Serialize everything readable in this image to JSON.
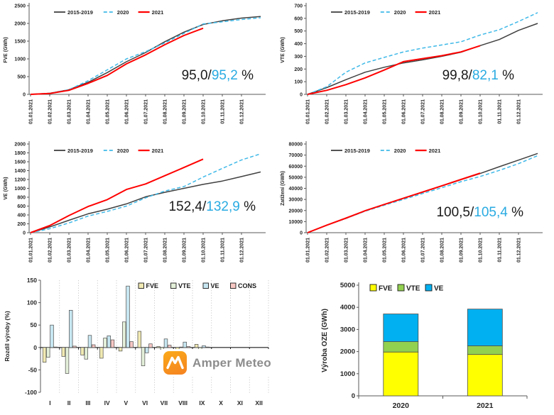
{
  "colors": {
    "axis": "#595959",
    "axis_text": "#262626",
    "hist": "#404040",
    "blue_dash": "#3FB9E8",
    "red": "#FF0000",
    "accent_text": "#29ABE2",
    "bar_border": "#4d4d4d",
    "grid": "#BFBFBF"
  },
  "logo": {
    "text": "Amper Meteo"
  },
  "x_dates": [
    "01.01.2021",
    "01.02.2021",
    "01.03.2021",
    "01.04.2021",
    "01.05.2021",
    "01.06.2021",
    "01.07.2021",
    "01.08.2021",
    "01.09.2021",
    "01.10.2021",
    "01.11.2021",
    "01.12.2021"
  ],
  "chart_data": [
    {
      "id": "fve",
      "type": "line",
      "title": "",
      "ylabel": "FVE  (GWh)",
      "ylim": [
        0,
        2500
      ],
      "ytick": 500,
      "legend_position": "top-left-inside",
      "grid": false,
      "annotation": {
        "left": "95,0/",
        "accent": "95,2",
        "right": " %",
        "x": 357,
        "y": 112
      },
      "series": [
        {
          "name": "2015-2019",
          "style": "hist",
          "values": [
            0,
            30,
            130,
            340,
            615,
            920,
            1180,
            1485,
            1755,
            1970,
            2075,
            2150,
            2195
          ]
        },
        {
          "name": "2020",
          "style": "dash",
          "values": [
            0,
            30,
            130,
            385,
            690,
            1000,
            1205,
            1450,
            1720,
            1985,
            2045,
            2110,
            2160
          ]
        },
        {
          "name": "2021",
          "style": "red",
          "values": [
            0,
            25,
            115,
            310,
            535,
            860,
            1115,
            1400,
            1660,
            1865
          ]
        }
      ]
    },
    {
      "id": "vte",
      "type": "line",
      "title": "",
      "ylabel": "VTE  (GWh)",
      "ylim": [
        0,
        700
      ],
      "ytick": 100,
      "legend_position": "top-left-inside",
      "grid": false,
      "annotation": {
        "left": "99,8/",
        "accent": "82,1",
        "right": " %",
        "x": 334,
        "y": 112
      },
      "series": [
        {
          "name": "2015-2019",
          "style": "hist",
          "values": [
            0,
            53,
            116,
            175,
            214,
            248,
            272,
            300,
            332,
            385,
            433,
            505,
            560
          ]
        },
        {
          "name": "2020",
          "style": "dash",
          "values": [
            0,
            60,
            175,
            248,
            292,
            335,
            365,
            390,
            415,
            468,
            510,
            575,
            645
          ]
        },
        {
          "name": "2021",
          "style": "red",
          "values": [
            0,
            32,
            77,
            130,
            192,
            258,
            282,
            305,
            335,
            384
          ]
        }
      ]
    },
    {
      "id": "ve",
      "type": "line",
      "title": "",
      "ylabel": "VE  (GWh)",
      "ylim": [
        0,
        2000
      ],
      "ytick": 200,
      "legend_position": "top-left-inside",
      "grid": false,
      "annotation": {
        "left": "152,4/",
        "accent": "132,9",
        "right": " %",
        "x": 360,
        "y": 102
      },
      "series": [
        {
          "name": "2015-2019",
          "style": "hist",
          "values": [
            0,
            130,
            280,
            425,
            530,
            650,
            810,
            910,
            1000,
            1090,
            1165,
            1265,
            1370
          ]
        },
        {
          "name": "2020",
          "style": "dash",
          "values": [
            0,
            90,
            220,
            375,
            480,
            600,
            785,
            940,
            1040,
            1255,
            1450,
            1640,
            1780
          ]
        },
        {
          "name": "2021",
          "style": "red",
          "values": [
            0,
            160,
            385,
            590,
            745,
            975,
            1100,
            1285,
            1470,
            1660
          ]
        }
      ]
    },
    {
      "id": "zatizeni",
      "type": "line",
      "title": "",
      "ylabel": "Zatížení  (GWh)",
      "ylim": [
        0,
        80000
      ],
      "ytick": 10000,
      "legend_position": "top-left-inside",
      "grid": false,
      "annotation": {
        "left": "100,5/",
        "accent": "105,4",
        "right": " %",
        "x": 347,
        "y": 110
      },
      "series": [
        {
          "name": "2015-2019",
          "style": "hist",
          "values": [
            0,
            6800,
            13000,
            19700,
            25400,
            30900,
            36500,
            42100,
            47800,
            53400,
            59500,
            65500,
            71500
          ]
        },
        {
          "name": "2020",
          "style": "dash",
          "values": [
            0,
            6700,
            12800,
            19400,
            24800,
            30000,
            35300,
            40600,
            46000,
            50700,
            56200,
            62300,
            69500
          ]
        },
        {
          "name": "2021",
          "style": "red",
          "values": [
            0,
            6800,
            13100,
            19800,
            25500,
            31100,
            36700,
            42300,
            48000,
            53700
          ]
        }
      ]
    },
    {
      "id": "rozdil",
      "type": "bar",
      "title": "",
      "ylabel": "Rozdíl výroby (%)",
      "ylim": [
        -100,
        150
      ],
      "ytick": 50,
      "legend_position": "top-right-inside",
      "grid": "vertical-dashed",
      "categories": [
        "I",
        "II",
        "III",
        "IV",
        "V",
        "VI",
        "VII",
        "VIII",
        "IX",
        "X",
        "XI",
        "XII"
      ],
      "series": [
        {
          "name": "FVE",
          "color": "#F0E9B2",
          "values": [
            -33,
            -20,
            -17,
            -24,
            -8,
            36,
            2,
            -7,
            7,
            0,
            0,
            0
          ]
        },
        {
          "name": "VTE",
          "color": "#E4F0D9",
          "values": [
            -22,
            -58,
            -26,
            21,
            57,
            -41,
            -4,
            1,
            -13,
            0,
            0,
            0
          ]
        },
        {
          "name": "VE",
          "color": "#C7E7F2",
          "values": [
            50,
            83,
            27,
            26,
            137,
            -12,
            19,
            12,
            4,
            0,
            0,
            0
          ]
        },
        {
          "name": "CONS",
          "color": "#F7C7C4",
          "values": [
            1,
            3,
            6,
            17,
            13,
            8,
            5,
            2,
            1,
            0,
            0,
            0
          ]
        }
      ]
    },
    {
      "id": "oze",
      "type": "stacked",
      "title": "",
      "ylabel": "Výroba OZE (GWh)",
      "ylim": [
        0,
        5000
      ],
      "ytick": 1000,
      "legend_position": "top-inside",
      "grid": false,
      "categories": [
        "2020",
        "2021"
      ],
      "series": [
        {
          "name": "FVE",
          "color": "#FFFF00",
          "values": [
            1980,
            1870
          ]
        },
        {
          "name": "VTE",
          "color": "#92D050",
          "values": [
            470,
            390
          ]
        },
        {
          "name": "VE",
          "color": "#00B0F0",
          "values": [
            1250,
            1660
          ]
        }
      ]
    }
  ]
}
